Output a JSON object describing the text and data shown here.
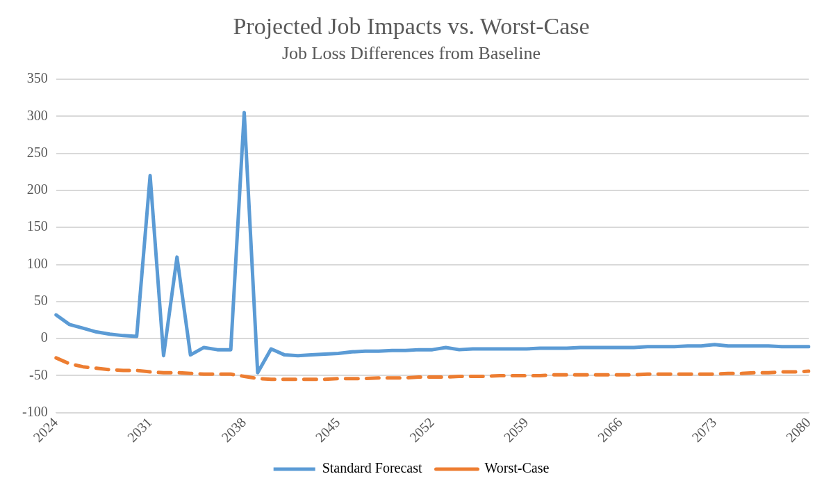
{
  "chart_data": {
    "type": "line",
    "title": "Projected Job Impacts vs. Worst-Case",
    "subtitle": "Job Loss Differences from Baseline",
    "categories": [
      "2024",
      null,
      null,
      null,
      null,
      null,
      null,
      "2031",
      null,
      null,
      null,
      null,
      null,
      null,
      "2038",
      null,
      null,
      null,
      null,
      null,
      null,
      "2045",
      null,
      null,
      null,
      null,
      null,
      null,
      "2052",
      null,
      null,
      null,
      null,
      null,
      null,
      "2059",
      null,
      null,
      null,
      null,
      null,
      null,
      "2066",
      null,
      null,
      null,
      null,
      null,
      null,
      "2073",
      null,
      null,
      null,
      null,
      null,
      null,
      "2080"
    ],
    "series": [
      {
        "name": "Standard Forecast",
        "color": "#5b9bd5",
        "line_style": "solid",
        "values": [
          32,
          19,
          14,
          9,
          6,
          4,
          3,
          220,
          -23,
          110,
          -22,
          -12,
          -15,
          -15,
          305,
          -46,
          -14,
          -22,
          -23,
          -22,
          -21,
          -20,
          -18,
          -17,
          -17,
          -16,
          -16,
          -15,
          -15,
          -12,
          -15,
          -14,
          -14,
          -14,
          -14,
          -14,
          -13,
          -13,
          -13,
          -12,
          -12,
          -12,
          -12,
          -12,
          -11,
          -11,
          -11,
          -10,
          -10,
          -8,
          -10,
          -10,
          -10,
          -10,
          -11,
          -11,
          -11
        ]
      },
      {
        "name": "Worst-Case",
        "color": "#ed7d31",
        "line_style": "dashed",
        "values": [
          -26,
          -34,
          -38,
          -40,
          -42,
          -43,
          -43,
          -45,
          -46,
          -46,
          -47,
          -48,
          -48,
          -48,
          -51,
          -54,
          -55,
          -55,
          -55,
          -55,
          -55,
          -54,
          -54,
          -54,
          -53,
          -53,
          -53,
          -52,
          -52,
          -52,
          -51,
          -51,
          -51,
          -50,
          -50,
          -50,
          -50,
          -49,
          -49,
          -49,
          -49,
          -49,
          -49,
          -49,
          -48,
          -48,
          -48,
          -48,
          -48,
          -48,
          -47,
          -47,
          -46,
          -46,
          -45,
          -45,
          -44
        ]
      }
    ],
    "ylim": [
      -100,
      350
    ],
    "yticks": [
      -100,
      -50,
      0,
      50,
      100,
      150,
      200,
      250,
      300,
      350
    ],
    "grid": "y",
    "legend": "bottom",
    "marker": "none"
  }
}
